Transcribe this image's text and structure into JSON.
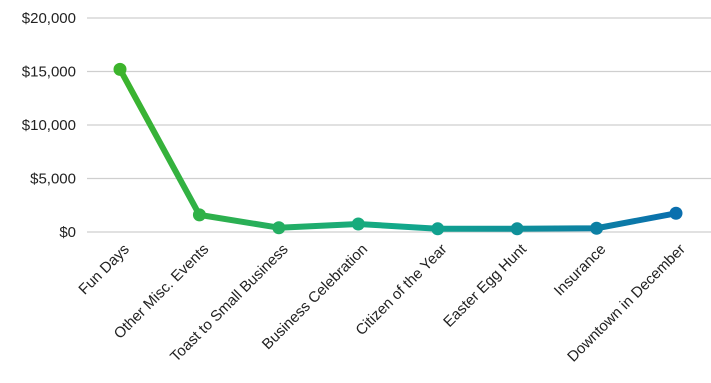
{
  "chart_data": {
    "type": "line",
    "categories": [
      "Fun Days",
      "Other Misc. Events",
      "Toast to Small Business",
      "Business Celebration",
      "Citizen of the Year",
      "Easter Egg Hunt",
      "Insurance",
      "Downtown in December"
    ],
    "series": [
      {
        "values": [
          15200,
          1600,
          400,
          750,
          300,
          300,
          350,
          1750
        ]
      }
    ],
    "ylim": [
      0,
      20000
    ],
    "yticks": [
      0,
      5000,
      10000,
      15000,
      20000
    ],
    "ytick_labels": [
      "$0",
      "$5,000",
      "$10,000",
      "$15,000",
      "$20,000"
    ],
    "grid": true,
    "legend": "none",
    "colors": {
      "gradient_start": "#3cb42c",
      "gradient_mid": "#12a98a",
      "gradient_end": "#0a6fae",
      "grid": "#cfcfcf",
      "text": "#222222"
    }
  }
}
